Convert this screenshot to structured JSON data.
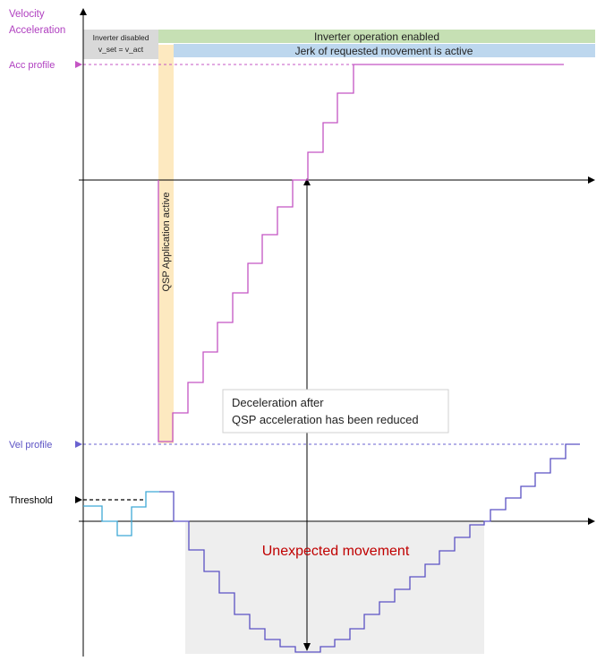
{
  "axis_labels": {
    "velocity": "Velocity",
    "acceleration": "Acceleration"
  },
  "left_labels": {
    "acc_profile": "Acc profile",
    "vel_profile": "Vel profile",
    "threshold": "Threshold"
  },
  "bars": {
    "inverter_disabled_line1": "Inverter disabled",
    "inverter_disabled_line2": "v_set = v_act",
    "inverter_enabled": "Inverter operation enabled",
    "jerk_active": "Jerk of requested movement is active",
    "qsp_active": "QSP Application active"
  },
  "annotations": {
    "decel_line1": "Deceleration after",
    "decel_line2": "QSP acceleration has been reduced",
    "unexpected": "Unexpected movement"
  },
  "colors": {
    "acc_curve": "#c455c4",
    "vel_curve": "#5b52c4",
    "vel_before": "#3fa9d6",
    "axis_label": "#b040c0",
    "unexpected_text": "#c00000",
    "green_bar": "#c6e0b4",
    "blue_bar": "#bdd7ee",
    "gray_box": "#d9d9d9",
    "qsp_bar": "#fde9c0",
    "shade": "#eeeeee"
  },
  "icons": {
    "acc_marker": "arrow-right-icon",
    "vel_marker": "arrow-right-icon",
    "threshold_marker": "arrow-right-icon"
  }
}
